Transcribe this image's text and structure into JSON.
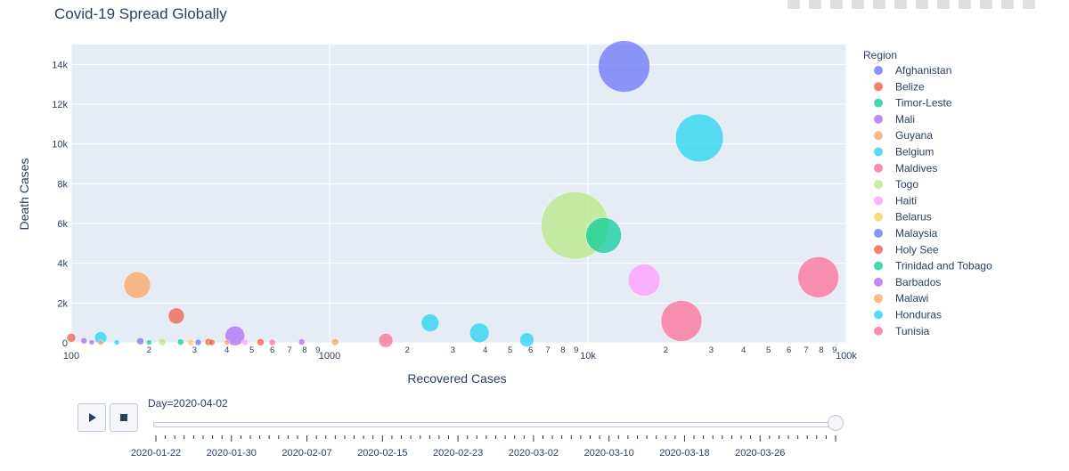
{
  "chart_data": {
    "type": "scatter",
    "title": "Covid-19 Spread Globally",
    "xlabel": "Recovered Cases",
    "ylabel": "Death Cases",
    "x_scale": "log",
    "xlim": [
      100,
      100000
    ],
    "ylim": [
      0,
      15000
    ],
    "y_ticks": [
      0,
      2000,
      4000,
      6000,
      8000,
      10000,
      12000,
      14000
    ],
    "y_tick_labels": [
      "0",
      "2k",
      "4k",
      "6k",
      "8k",
      "10k",
      "12k",
      "14k"
    ],
    "x_major_ticks": [
      100,
      1000,
      10000,
      100000
    ],
    "x_major_labels": [
      "100",
      "1000",
      "10k",
      "100k"
    ],
    "x_minor_labels": [
      "2",
      "3",
      "4",
      "5",
      "6",
      "7",
      "8",
      "9"
    ],
    "grid": true,
    "legend_title": "Region",
    "legend_position": "right",
    "series": [
      {
        "name": "Afghanistan",
        "color": "#636efa",
        "points": [
          [
            13800,
            13900,
            58
          ],
          [
            185,
            80,
            8
          ]
        ]
      },
      {
        "name": "Belize",
        "color": "#ef553b",
        "points": [
          [
            255,
            1350,
            18
          ],
          [
            100,
            250,
            10
          ],
          [
            340,
            40,
            8
          ],
          [
            540,
            30,
            8
          ]
        ]
      },
      {
        "name": "Timor-Leste",
        "color": "#00cc96",
        "points": [
          [
            11500,
            5400,
            40
          ],
          [
            265,
            40,
            7
          ]
        ]
      },
      {
        "name": "Mali",
        "color": "#ab63fa",
        "points": [
          [
            430,
            350,
            22
          ],
          [
            112,
            100,
            7
          ],
          [
            780,
            40,
            7
          ]
        ]
      },
      {
        "name": "Guyana",
        "color": "#fba15a",
        "points": [
          [
            180,
            2900,
            30
          ],
          [
            1050,
            40,
            8
          ],
          [
            130,
            10,
            6
          ]
        ]
      },
      {
        "name": "Belgium",
        "color": "#19d3f3",
        "points": [
          [
            27000,
            10300,
            54
          ],
          [
            2450,
            1000,
            20
          ],
          [
            3800,
            500,
            22
          ],
          [
            5800,
            150,
            16
          ],
          [
            130,
            250,
            14
          ]
        ]
      },
      {
        "name": "Maldives",
        "color": "#ff6692",
        "points": [
          [
            23000,
            1100,
            46
          ],
          [
            1650,
            120,
            16
          ],
          [
            600,
            20,
            7
          ]
        ]
      },
      {
        "name": "Togo",
        "color": "#b6e880",
        "points": [
          [
            8900,
            5900,
            76
          ],
          [
            225,
            40,
            8
          ]
        ]
      },
      {
        "name": "Haiti",
        "color": "#ff97ff",
        "points": [
          [
            16500,
            3150,
            36
          ],
          [
            470,
            30,
            7
          ]
        ]
      },
      {
        "name": "Belarus",
        "color": "#fecb52",
        "points": [
          [
            290,
            20,
            7
          ]
        ]
      },
      {
        "name": "Malaysia",
        "color": "#636efa",
        "points": [
          [
            310,
            20,
            7
          ]
        ]
      },
      {
        "name": "Holy See",
        "color": "#ef553b",
        "points": [
          [
            350,
            20,
            7
          ]
        ]
      },
      {
        "name": "Trinidad and Tobago",
        "color": "#00cc96",
        "points": [
          [
            200,
            20,
            6
          ]
        ]
      },
      {
        "name": "Barbados",
        "color": "#ab63fa",
        "points": [
          [
            120,
            20,
            6
          ]
        ]
      },
      {
        "name": "Malawi",
        "color": "#fba15a",
        "points": [
          [
            400,
            20,
            6
          ]
        ]
      },
      {
        "name": "Honduras",
        "color": "#19d3f3",
        "points": [
          [
            150,
            20,
            6
          ]
        ]
      },
      {
        "name": "Tunisia",
        "color": "#ff6692",
        "points": [
          [
            78000,
            3300,
            46
          ]
        ]
      }
    ]
  },
  "slider": {
    "current_label": "Day=2020-04-02",
    "date_labels": [
      "2020-01-22",
      "2020-01-30",
      "2020-02-07",
      "2020-02-15",
      "2020-02-23",
      "2020-03-02",
      "2020-03-10",
      "2020-03-18",
      "2020-03-26"
    ],
    "total_steps": 72,
    "current_step": 72
  },
  "controls": {
    "play_icon": "play-icon",
    "stop_icon": "stop-icon"
  }
}
